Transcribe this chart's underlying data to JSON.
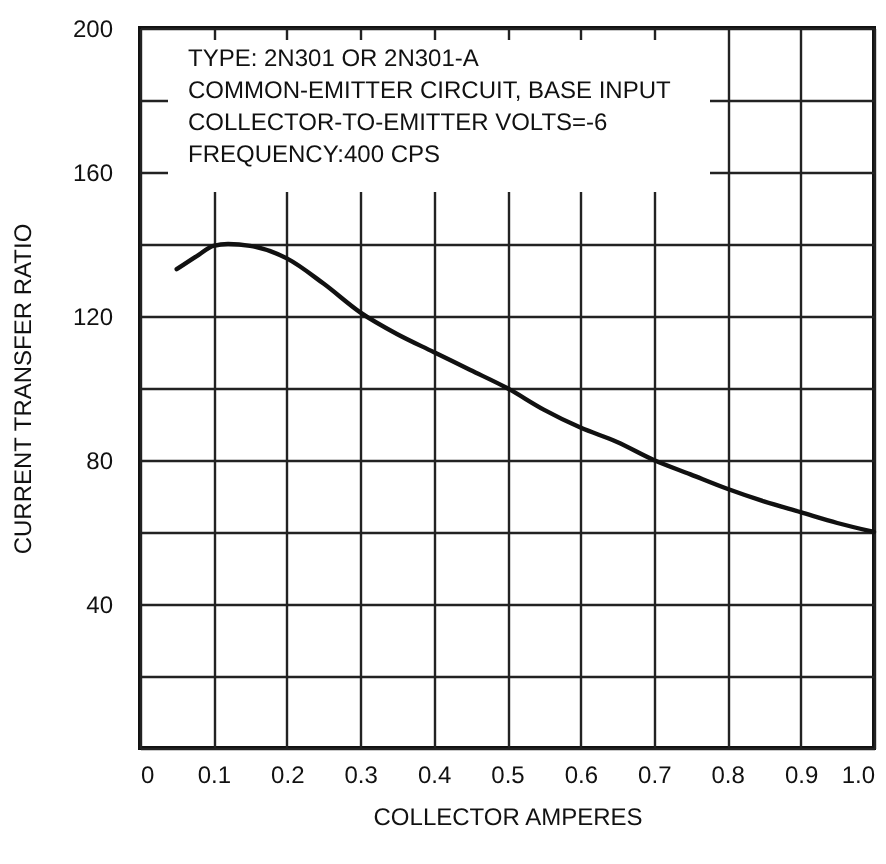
{
  "chart_data": {
    "type": "line",
    "annotations": [
      "TYPE: 2N301 OR 2N301-A",
      "COMMON-EMITTER CIRCUIT, BASE INPUT",
      "COLLECTOR-TO-EMITTER VOLTS=-6",
      "FREQUENCY:400 CPS"
    ],
    "xlabel": "COLLECTOR AMPERES",
    "ylabel": "CURRENT TRANSFER RATIO",
    "x": [
      0.05,
      0.08,
      0.1,
      0.12,
      0.15,
      0.2,
      0.25,
      0.3,
      0.35,
      0.4,
      0.45,
      0.5,
      0.55,
      0.6,
      0.65,
      0.7,
      0.75,
      0.8,
      0.85,
      0.9,
      0.95,
      1.0
    ],
    "series": [
      {
        "color": "#111111",
        "values": [
          133,
          137,
          139.5,
          140,
          139.5,
          136,
          129,
          121,
          115,
          110,
          105,
          100,
          94,
          89,
          85,
          80,
          76,
          72,
          68.5,
          65.5,
          62.5,
          60
        ]
      }
    ],
    "xlim": [
      0,
      1.0
    ],
    "ylim": [
      0,
      200
    ],
    "xticks": [
      {
        "value": 0,
        "label": "0"
      },
      {
        "value": 0.1,
        "label": "0.1"
      },
      {
        "value": 0.2,
        "label": "0.2"
      },
      {
        "value": 0.3,
        "label": "0.3"
      },
      {
        "value": 0.4,
        "label": "0.4"
      },
      {
        "value": 0.5,
        "label": "0.5"
      },
      {
        "value": 0.6,
        "label": "0.6"
      },
      {
        "value": 0.7,
        "label": "0.7"
      },
      {
        "value": 0.8,
        "label": "0.8"
      },
      {
        "value": 0.9,
        "label": "0.9"
      },
      {
        "value": 1.0,
        "label": "1.0"
      }
    ],
    "yticks": [
      {
        "value": 0,
        "label": null
      },
      {
        "value": 20,
        "label": null
      },
      40,
      {
        "value": 60,
        "label": null
      },
      80,
      {
        "value": 100,
        "label": null
      },
      120,
      {
        "value": 140,
        "label": null
      },
      160,
      {
        "value": 180,
        "label": null
      },
      200
    ],
    "grid": true,
    "marker": "none",
    "line_style": "solid"
  }
}
